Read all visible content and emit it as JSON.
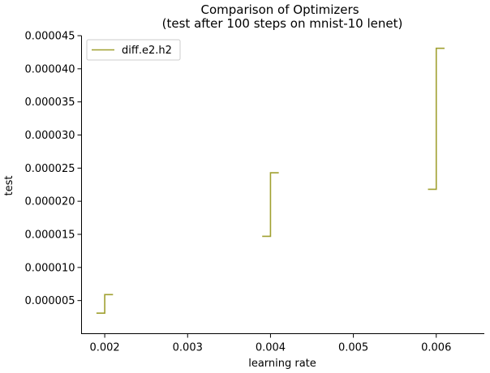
{
  "chart_data": {
    "type": "line",
    "title": "Comparison of Optimizers",
    "subtitle": "(test after 100 steps on mnist-10 lenet)",
    "xlabel": "learning rate",
    "ylabel": "test",
    "xlim": [
      0.00172,
      0.00658
    ],
    "ylim": [
      0.0,
      4.5e-05
    ],
    "xticks": [
      0.002,
      0.003,
      0.004,
      0.005,
      0.006
    ],
    "xtick_labels": [
      "0.002",
      "0.003",
      "0.004",
      "0.005",
      "0.006"
    ],
    "yticks": [
      5e-06,
      1e-05,
      1.5e-05,
      2e-05,
      2.5e-05,
      3e-05,
      3.5e-05,
      4e-05,
      4.5e-05
    ],
    "ytick_labels": [
      "0.000005",
      "0.000010",
      "0.000015",
      "0.000020",
      "0.000025",
      "0.000030",
      "0.000035",
      "0.000040",
      "0.000045"
    ],
    "grid": false,
    "legend_position": "top-left",
    "series": [
      {
        "name": "diff.e2.h2",
        "color": "#a0a030",
        "step_segments": [
          {
            "x": 0.002,
            "y_low": 3.1e-06,
            "y_high": 5.9e-06
          },
          {
            "x": 0.004,
            "y_low": 1.47e-05,
            "y_high": 2.43e-05
          },
          {
            "x": 0.006,
            "y_low": 2.18e-05,
            "y_high": 4.31e-05
          }
        ]
      }
    ]
  }
}
